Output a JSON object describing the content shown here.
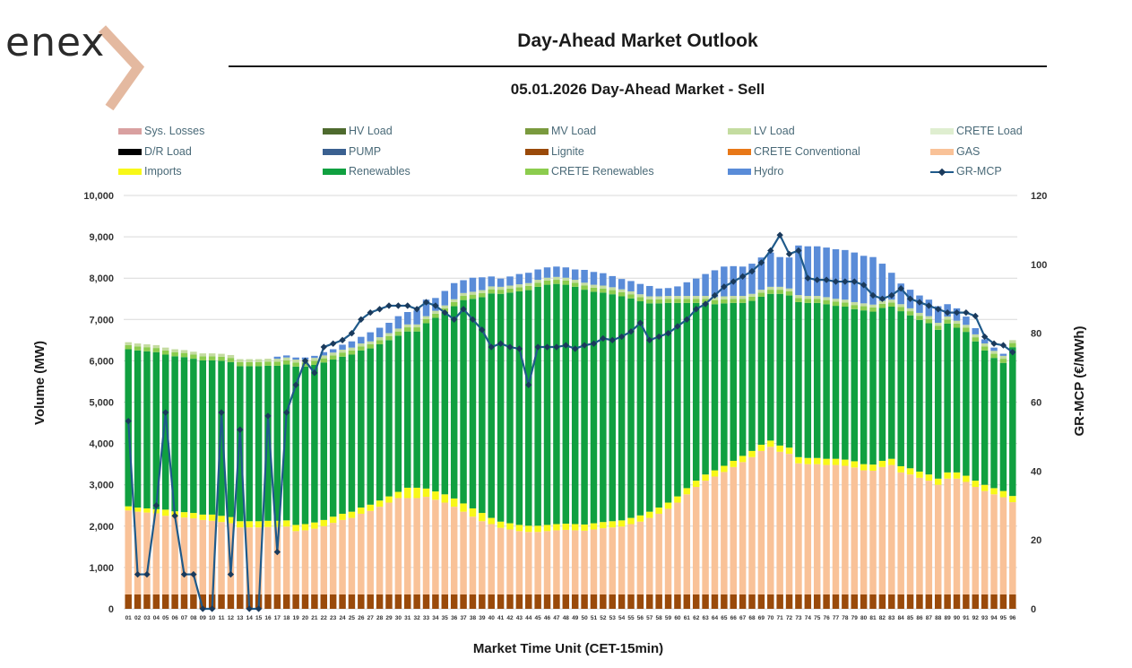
{
  "logo": {
    "text": "enex"
  },
  "title": "Day-Ahead Market Outlook",
  "subtitle": "05.01.2026  Day-Ahead Market - Sell",
  "colors": {
    "sys_losses": "#d9a0a0",
    "hv_load": "#4e6a2e",
    "mv_load": "#7a9a3e",
    "lv_load": "#c4dca0",
    "crete_load": "#dfeed0",
    "dr_load": "#000000",
    "pump": "#3a6090",
    "lignite": "#9a4a0a",
    "crete_conventional": "#e87818",
    "gas": "#f9c298",
    "imports": "#f8f818",
    "renewables": "#10a040",
    "crete_renewables": "#8ccc4e",
    "hydro": "#5a8cd8",
    "mcp_line": "#1f5a8a",
    "mcp_marker": "#1a3a5c",
    "grid": "#d9d9d9"
  },
  "chart_data": {
    "type": "bar",
    "stacked": true,
    "xlabel": "Market Time Unit (CET-15min)",
    "ylabel": "Volume (MW)",
    "y2label": "GR-MCP (€/MWh)",
    "ylim": [
      0,
      10000
    ],
    "y2lim": [
      0,
      120
    ],
    "yticks": [
      "0",
      "1,000",
      "2,000",
      "3,000",
      "4,000",
      "5,000",
      "6,000",
      "7,000",
      "8,000",
      "9,000",
      "10,000"
    ],
    "y2ticks": [
      "0",
      "20",
      "40",
      "60",
      "80",
      "100",
      "120"
    ],
    "grid": "horizontal",
    "legend_position": "top",
    "legend": [
      "Sys. Losses",
      "HV Load",
      "MV Load",
      "LV Load",
      "CRETE Load",
      "D/R Load",
      "PUMP",
      "Lignite",
      "CRETE Conventional",
      "GAS",
      "Imports",
      "Renewables",
      "CRETE Renewables",
      "Hydro",
      "GR-MCP"
    ],
    "categories": [
      "01",
      "02",
      "03",
      "04",
      "05",
      "06",
      "07",
      "08",
      "09",
      "10",
      "11",
      "12",
      "13",
      "14",
      "15",
      "16",
      "17",
      "18",
      "19",
      "20",
      "21",
      "22",
      "23",
      "24",
      "25",
      "26",
      "27",
      "28",
      "29",
      "30",
      "31",
      "32",
      "33",
      "34",
      "35",
      "36",
      "37",
      "38",
      "39",
      "40",
      "41",
      "42",
      "43",
      "44",
      "45",
      "46",
      "47",
      "48",
      "49",
      "50",
      "51",
      "52",
      "53",
      "54",
      "55",
      "56",
      "57",
      "58",
      "59",
      "60",
      "61",
      "62",
      "63",
      "64",
      "65",
      "66",
      "67",
      "68",
      "69",
      "70",
      "71",
      "72",
      "73",
      "74",
      "75",
      "76",
      "77",
      "78",
      "79",
      "80",
      "81",
      "82",
      "83",
      "84",
      "85",
      "86",
      "87",
      "88",
      "89",
      "90",
      "91",
      "92",
      "93",
      "94",
      "95",
      "96"
    ],
    "series": [
      {
        "name": "Lignite",
        "color_key": "lignite",
        "values": [
          350,
          350,
          350,
          350,
          350,
          350,
          350,
          350,
          350,
          350,
          350,
          350,
          350,
          350,
          350,
          350,
          350,
          350,
          350,
          350,
          350,
          350,
          350,
          350,
          350,
          350,
          350,
          350,
          350,
          350,
          350,
          350,
          350,
          350,
          350,
          350,
          350,
          350,
          350,
          350,
          350,
          350,
          350,
          350,
          350,
          350,
          350,
          350,
          350,
          350,
          350,
          350,
          350,
          350,
          350,
          350,
          350,
          350,
          350,
          350,
          350,
          350,
          350,
          350,
          350,
          350,
          350,
          350,
          350,
          350,
          350,
          350,
          350,
          350,
          350,
          350,
          350,
          350,
          350,
          350,
          350,
          350,
          350,
          350,
          350,
          350,
          350,
          350,
          350,
          350,
          350,
          350,
          350,
          350,
          350,
          350
        ]
      },
      {
        "name": "GAS",
        "color_key": "gas",
        "values": [
          2030,
          2000,
          1980,
          1960,
          1900,
          1880,
          1860,
          1840,
          1800,
          1780,
          1750,
          1720,
          1620,
          1620,
          1620,
          1630,
          1630,
          1640,
          1530,
          1550,
          1590,
          1650,
          1730,
          1800,
          1850,
          1950,
          2020,
          2120,
          2220,
          2330,
          2330,
          2330,
          2360,
          2290,
          2220,
          2120,
          2000,
          1880,
          1770,
          1700,
          1610,
          1570,
          1530,
          1510,
          1510,
          1530,
          1550,
          1560,
          1550,
          1540,
          1570,
          1600,
          1620,
          1640,
          1700,
          1760,
          1850,
          1950,
          2070,
          2220,
          2420,
          2600,
          2750,
          2850,
          2960,
          3080,
          3200,
          3320,
          3470,
          3570,
          3450,
          3400,
          3170,
          3150,
          3150,
          3130,
          3130,
          3110,
          3070,
          3000,
          2990,
          3080,
          3130,
          2950,
          2900,
          2820,
          2750,
          2650,
          2800,
          2800,
          2720,
          2600,
          2500,
          2420,
          2350,
          2230
        ]
      },
      {
        "name": "Imports",
        "color_key": "imports",
        "values": [
          100,
          100,
          100,
          100,
          150,
          130,
          130,
          130,
          130,
          150,
          150,
          150,
          150,
          150,
          150,
          150,
          150,
          150,
          150,
          150,
          150,
          150,
          150,
          150,
          150,
          150,
          150,
          150,
          150,
          150,
          250,
          250,
          200,
          200,
          200,
          200,
          200,
          200,
          200,
          150,
          150,
          150,
          150,
          150,
          150,
          150,
          150,
          150,
          150,
          150,
          150,
          150,
          150,
          150,
          150,
          150,
          150,
          150,
          150,
          150,
          150,
          150,
          150,
          150,
          150,
          150,
          150,
          150,
          150,
          150,
          150,
          150,
          150,
          150,
          150,
          150,
          150,
          150,
          150,
          150,
          150,
          150,
          150,
          150,
          150,
          150,
          150,
          150,
          150,
          150,
          150,
          150,
          150,
          150,
          150,
          150
        ]
      },
      {
        "name": "Renewables",
        "color_key": "renewables",
        "values": [
          3800,
          3800,
          3800,
          3800,
          3750,
          3750,
          3750,
          3730,
          3730,
          3730,
          3750,
          3750,
          3750,
          3750,
          3750,
          3750,
          3750,
          3770,
          3830,
          3810,
          3810,
          3810,
          3800,
          3800,
          3800,
          3800,
          3780,
          3780,
          3780,
          3780,
          3780,
          3780,
          4000,
          4200,
          4400,
          4650,
          4920,
          5070,
          5220,
          5430,
          5510,
          5580,
          5650,
          5700,
          5780,
          5810,
          5810,
          5780,
          5740,
          5680,
          5600,
          5550,
          5490,
          5420,
          5310,
          5180,
          5040,
          4940,
          4830,
          4680,
          4480,
          4300,
          4150,
          4020,
          3930,
          3820,
          3700,
          3630,
          3580,
          3550,
          3670,
          3680,
          3750,
          3750,
          3750,
          3740,
          3700,
          3700,
          3680,
          3720,
          3700,
          3700,
          3680,
          3750,
          3700,
          3670,
          3660,
          3600,
          3600,
          3500,
          3480,
          3370,
          3250,
          3150,
          3100,
          3600
        ]
      },
      {
        "name": "CRETE Renewables",
        "color_key": "crete_renewables",
        "values": [
          100,
          100,
          100,
          100,
          100,
          100,
          100,
          100,
          100,
          100,
          100,
          100,
          100,
          100,
          100,
          100,
          100,
          100,
          100,
          100,
          100,
          100,
          100,
          100,
          100,
          100,
          100,
          100,
          100,
          100,
          100,
          100,
          100,
          100,
          100,
          100,
          100,
          100,
          100,
          100,
          100,
          100,
          100,
          100,
          100,
          100,
          100,
          100,
          100,
          100,
          100,
          100,
          100,
          100,
          100,
          100,
          100,
          100,
          100,
          100,
          100,
          100,
          100,
          100,
          100,
          100,
          100,
          100,
          100,
          100,
          100,
          100,
          100,
          100,
          100,
          100,
          100,
          100,
          100,
          100,
          100,
          100,
          100,
          100,
          100,
          100,
          100,
          100,
          100,
          100,
          100,
          100,
          100,
          100,
          100,
          100
        ]
      },
      {
        "name": "LV Load",
        "color_key": "lv_load",
        "values": [
          70,
          70,
          70,
          70,
          70,
          70,
          70,
          70,
          70,
          70,
          70,
          70,
          70,
          70,
          70,
          70,
          70,
          70,
          70,
          70,
          70,
          70,
          70,
          70,
          70,
          70,
          70,
          70,
          70,
          70,
          70,
          70,
          70,
          70,
          70,
          70,
          70,
          70,
          70,
          70,
          70,
          70,
          70,
          70,
          70,
          70,
          70,
          70,
          70,
          70,
          70,
          70,
          70,
          70,
          70,
          70,
          70,
          70,
          70,
          70,
          70,
          70,
          70,
          70,
          70,
          70,
          70,
          70,
          70,
          70,
          70,
          70,
          70,
          70,
          70,
          70,
          70,
          70,
          70,
          70,
          70,
          70,
          70,
          70,
          70,
          70,
          70,
          70,
          70,
          70,
          70,
          70,
          70,
          70,
          70,
          70
        ]
      },
      {
        "name": "Hydro",
        "color_key": "hydro",
        "values": [
          0,
          0,
          0,
          0,
          0,
          0,
          0,
          0,
          0,
          0,
          0,
          0,
          0,
          0,
          0,
          0,
          50,
          50,
          50,
          50,
          50,
          80,
          80,
          120,
          150,
          160,
          220,
          230,
          250,
          300,
          300,
          340,
          400,
          310,
          350,
          390,
          310,
          340,
          310,
          240,
          200,
          220,
          250,
          250,
          250,
          250,
          250,
          250,
          250,
          310,
          310,
          300,
          270,
          250,
          250,
          250,
          250,
          190,
          190,
          230,
          330,
          420,
          530,
          650,
          720,
          720,
          710,
          730,
          780,
          830,
          720,
          750,
          1200,
          1200,
          1200,
          1200,
          1200,
          1200,
          1200,
          1150,
          1150,
          900,
          650,
          500,
          450,
          420,
          400,
          400,
          300,
          300,
          200,
          150,
          100,
          80,
          50,
          0
        ]
      }
    ],
    "mcp": [
      54.5,
      10,
      10,
      30,
      57,
      27,
      10,
      10,
      0,
      0,
      57,
      10,
      52,
      0,
      0,
      56,
      16.5,
      57,
      65,
      72,
      68.5,
      76,
      77,
      78,
      80,
      84,
      86,
      87,
      88,
      88,
      88,
      87,
      89,
      88,
      86,
      84,
      87,
      84,
      81,
      76,
      77,
      76,
      75.5,
      65,
      76,
      76,
      76,
      76.5,
      75.5,
      76.5,
      77,
      78.5,
      78,
      79,
      80.5,
      83,
      78,
      79,
      80,
      82,
      84,
      87,
      88.5,
      91,
      93.5,
      95,
      96.5,
      98,
      100.5,
      104,
      108.5,
      103,
      104,
      96,
      95.5,
      95.5,
      95,
      95,
      95,
      94,
      91,
      90,
      91,
      93,
      90,
      89,
      88,
      87,
      86,
      86,
      86,
      85,
      79,
      77,
      76.5,
      74.5
    ]
  }
}
